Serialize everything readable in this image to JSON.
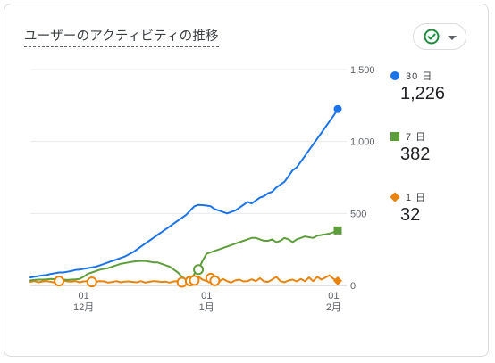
{
  "card": {
    "title": "ユーザーのアクティビティの推移"
  },
  "status_button": {
    "icon": "check-circle-icon",
    "caret_icon": "caret-down-icon",
    "accent": "#1e8e3e"
  },
  "legend": [
    {
      "label": "30 日",
      "value": "1,226",
      "color": "#1a73e8",
      "marker": "circle"
    },
    {
      "label": "7 日",
      "value": "382",
      "color": "#5f9e3c",
      "marker": "square"
    },
    {
      "label": "1 日",
      "value": "32",
      "color": "#e8830c",
      "marker": "diamond"
    }
  ],
  "chart_data": {
    "type": "line",
    "title": "ユーザーのアクティビティの推移",
    "xlabel": "",
    "ylabel": "",
    "ylim": [
      0,
      1500
    ],
    "y_axis_position": "right",
    "yticks": [
      "1,500",
      "1,000",
      "500",
      "0"
    ],
    "ytick_values": [
      1500,
      1000,
      500,
      0
    ],
    "xticks": [
      {
        "day": "01",
        "month": "12月",
        "index": 13
      },
      {
        "day": "01",
        "month": "1月",
        "index": 43
      },
      {
        "day": "01",
        "month": "2月",
        "index": 74
      }
    ],
    "grid": true,
    "legend_position": "right",
    "series": [
      {
        "name": "30 日",
        "color": "#1a73e8",
        "end_marker": "circle",
        "values": [
          55,
          60,
          65,
          70,
          72,
          80,
          85,
          90,
          90,
          95,
          100,
          108,
          110,
          115,
          120,
          125,
          130,
          140,
          150,
          160,
          170,
          180,
          190,
          200,
          215,
          230,
          250,
          270,
          290,
          310,
          330,
          350,
          370,
          390,
          410,
          430,
          450,
          470,
          490,
          520,
          550,
          560,
          558,
          555,
          550,
          530,
          520,
          510,
          500,
          510,
          520,
          540,
          560,
          580,
          570,
          590,
          610,
          620,
          640,
          650,
          680,
          700,
          720,
          760,
          800,
          820,
          860,
          900,
          940,
          980,
          1020,
          1060,
          1100,
          1140,
          1180,
          1226
        ]
      },
      {
        "name": "7 日",
        "color": "#5f9e3c",
        "end_marker": "square",
        "values": [
          35,
          38,
          40,
          40,
          42,
          45,
          42,
          44,
          40,
          38,
          40,
          42,
          45,
          60,
          80,
          90,
          100,
          110,
          115,
          120,
          130,
          140,
          150,
          155,
          160,
          165,
          168,
          170,
          170,
          165,
          160,
          160,
          150,
          140,
          130,
          110,
          90,
          60,
          40,
          30,
          80,
          110,
          170,
          220,
          230,
          240,
          250,
          260,
          270,
          280,
          290,
          300,
          310,
          320,
          330,
          330,
          320,
          310,
          310,
          320,
          300,
          310,
          330,
          320,
          300,
          320,
          330,
          340,
          335,
          330,
          345,
          350,
          355,
          360,
          370,
          382
        ]
      },
      {
        "name": "1 日",
        "color": "#e8830c",
        "end_marker": "diamond",
        "values": [
          25,
          30,
          22,
          28,
          30,
          25,
          20,
          30,
          35,
          28,
          26,
          30,
          22,
          28,
          30,
          24,
          26,
          30,
          28,
          20,
          24,
          30,
          22,
          26,
          28,
          24,
          22,
          30,
          20,
          25,
          30,
          28,
          24,
          26,
          20,
          28,
          30,
          22,
          20,
          30,
          35,
          60,
          40,
          30,
          50,
          32,
          25,
          45,
          30,
          20,
          35,
          40,
          28,
          30,
          42,
          30,
          50,
          28,
          25,
          40,
          60,
          30,
          22,
          35,
          40,
          28,
          45,
          30,
          55,
          30,
          60,
          40,
          55,
          70,
          45,
          32
        ]
      }
    ],
    "annotations": [
      {
        "series": "1 日",
        "index": 7,
        "marker": "hollow-circle"
      },
      {
        "series": "1 日",
        "index": 15,
        "marker": "hollow-circle"
      },
      {
        "series": "1 日",
        "index": 37,
        "marker": "hollow-circle"
      },
      {
        "series": "1 日",
        "index": 39,
        "marker": "hollow-circle"
      },
      {
        "series": "1 日",
        "index": 40,
        "marker": "hollow-circle"
      },
      {
        "series": "1 日",
        "index": 44,
        "marker": "hollow-circle"
      },
      {
        "series": "1 日",
        "index": 45,
        "marker": "hollow-circle"
      },
      {
        "series": "7 日",
        "index": 41,
        "marker": "hollow-circle"
      }
    ]
  }
}
